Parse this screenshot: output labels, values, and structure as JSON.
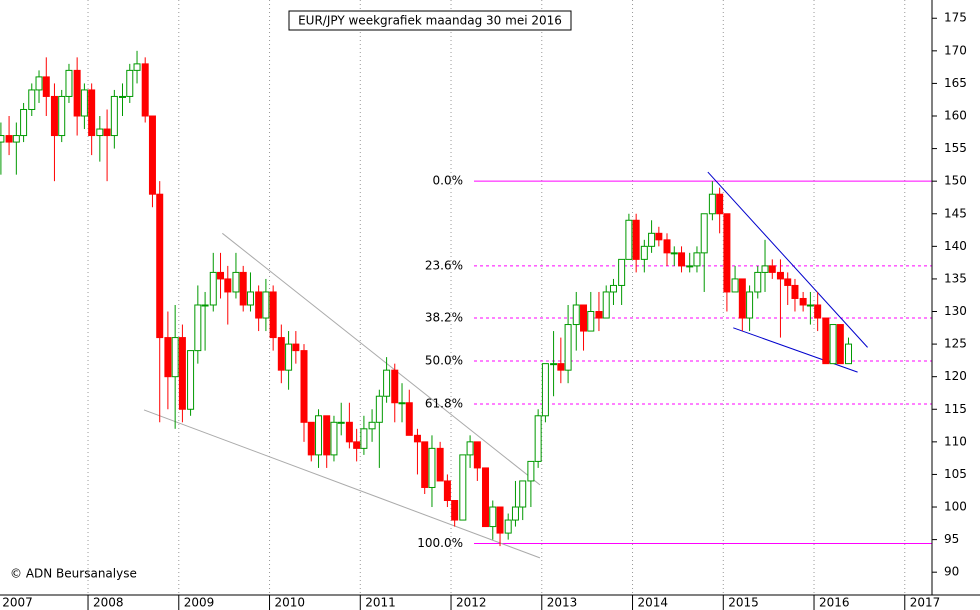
{
  "chart_data": {
    "type": "candlestick",
    "title": "EUR/JPY weekgrafiek maandag 30 mei 2016",
    "credit": "© ADN Beursanalyse",
    "xlim": [
      2007.03,
      2017.3
    ],
    "xticks": [
      2007,
      2008,
      2009,
      2010,
      2011,
      2012,
      2013,
      2014,
      2015,
      2016,
      2017
    ],
    "ylim": [
      86.5,
      177.8
    ],
    "yticks": [
      90,
      95,
      100,
      105,
      110,
      115,
      120,
      125,
      130,
      135,
      140,
      145,
      150,
      155,
      160,
      165,
      170,
      175
    ],
    "up_color": "#009900",
    "down_color": "#ff0000",
    "grid": true,
    "x": [
      2007.04,
      2007.13,
      2007.21,
      2007.29,
      2007.38,
      2007.46,
      2007.54,
      2007.63,
      2007.71,
      2007.79,
      2007.88,
      2007.96,
      2008.04,
      2008.13,
      2008.21,
      2008.29,
      2008.38,
      2008.46,
      2008.54,
      2008.63,
      2008.71,
      2008.79,
      2008.88,
      2008.96,
      2009.04,
      2009.13,
      2009.21,
      2009.29,
      2009.38,
      2009.46,
      2009.54,
      2009.63,
      2009.71,
      2009.79,
      2009.88,
      2009.96,
      2010.04,
      2010.13,
      2010.21,
      2010.29,
      2010.38,
      2010.46,
      2010.54,
      2010.63,
      2010.71,
      2010.79,
      2010.88,
      2010.96,
      2011.04,
      2011.13,
      2011.21,
      2011.29,
      2011.38,
      2011.46,
      2011.54,
      2011.63,
      2011.71,
      2011.79,
      2011.88,
      2011.96,
      2012.04,
      2012.13,
      2012.21,
      2012.29,
      2012.38,
      2012.46,
      2012.54,
      2012.63,
      2012.71,
      2012.79,
      2012.88,
      2012.96,
      2013.04,
      2013.13,
      2013.21,
      2013.29,
      2013.38,
      2013.46,
      2013.54,
      2013.63,
      2013.71,
      2013.79,
      2013.88,
      2013.96,
      2014.04,
      2014.13,
      2014.21,
      2014.29,
      2014.38,
      2014.46,
      2014.54,
      2014.63,
      2014.71,
      2014.79,
      2014.88,
      2014.96,
      2015.04,
      2015.13,
      2015.21,
      2015.29,
      2015.38,
      2015.46,
      2015.54,
      2015.63,
      2015.71,
      2015.79,
      2015.88,
      2015.96,
      2016.04,
      2016.13,
      2016.21,
      2016.29,
      2016.38
    ],
    "open": [
      156,
      157,
      156,
      157,
      161,
      164,
      166,
      163,
      157,
      163,
      167,
      160,
      164,
      157,
      158,
      157,
      163,
      163,
      167,
      168,
      160,
      148,
      126,
      120,
      126,
      115,
      124,
      131,
      131,
      136,
      135,
      133,
      136,
      131,
      133,
      129,
      133,
      126,
      121,
      125,
      124,
      113,
      108,
      114,
      108,
      113,
      113,
      110,
      109,
      112,
      113,
      117,
      121,
      116,
      116,
      111,
      110,
      103,
      109,
      104,
      101,
      98,
      108,
      110,
      106,
      97,
      100,
      96,
      98,
      100,
      104,
      107,
      114,
      122,
      122,
      121,
      128,
      131,
      127,
      130,
      129,
      133,
      134,
      138,
      144,
      138,
      140,
      142,
      141,
      139,
      139,
      137,
      137,
      139,
      145,
      148,
      145,
      133,
      135,
      129,
      133,
      136,
      137,
      136,
      135,
      134,
      132,
      131,
      131,
      129,
      122,
      128,
      122
    ],
    "high": [
      159,
      160,
      159,
      162,
      165,
      167,
      169,
      165,
      164,
      168,
      169,
      165,
      165,
      160,
      161,
      164,
      165,
      168,
      170,
      169,
      160,
      150,
      130,
      131,
      128,
      124,
      134,
      133,
      139,
      139,
      137,
      139,
      137,
      136,
      134,
      135,
      134,
      128,
      127,
      127,
      125,
      113,
      115,
      114,
      114,
      116,
      116,
      112,
      114,
      115,
      118,
      123,
      122,
      119,
      118,
      112,
      110,
      111,
      110,
      105,
      101,
      108,
      111,
      110,
      106,
      101,
      100,
      99,
      104,
      104,
      107,
      115,
      122,
      127,
      126,
      131,
      133,
      131,
      133,
      133,
      134,
      135,
      138,
      145,
      145,
      141,
      144,
      143,
      142,
      140,
      140,
      139,
      140,
      145,
      150,
      149,
      145,
      137,
      135,
      134,
      137,
      141,
      138,
      138,
      136,
      135,
      133,
      133,
      133,
      129,
      128,
      128,
      126
    ],
    "low": [
      151,
      154,
      151,
      156,
      160,
      162,
      160,
      150,
      156,
      162,
      157,
      158,
      154,
      153,
      150,
      155,
      160,
      162,
      165,
      159,
      146,
      113,
      115,
      112,
      113,
      114,
      122,
      124,
      130,
      132,
      128,
      132,
      130,
      130,
      127,
      127,
      124,
      119,
      118,
      122,
      110,
      107,
      106,
      106,
      107,
      111,
      109,
      107,
      108,
      110,
      106,
      116,
      113,
      113,
      111,
      105,
      102,
      100,
      104,
      100,
      97,
      98,
      106,
      104,
      97,
      95,
      94,
      95,
      97,
      98,
      100,
      106,
      113,
      117,
      119,
      119,
      124,
      124,
      127,
      127,
      129,
      131,
      131,
      138,
      136,
      136,
      139,
      140,
      137,
      137,
      136,
      136,
      136,
      133,
      144,
      142,
      130,
      133,
      127,
      127,
      132,
      133,
      135,
      126,
      131,
      130,
      130,
      128,
      127,
      122,
      122,
      122,
      122
    ],
    "close": [
      157,
      156,
      157,
      161,
      164,
      166,
      163,
      157,
      163,
      167,
      160,
      164,
      157,
      158,
      157,
      163,
      163,
      167,
      168,
      160,
      148,
      126,
      120,
      126,
      115,
      124,
      131,
      131,
      136,
      135,
      133,
      136,
      131,
      133,
      129,
      133,
      126,
      121,
      125,
      124,
      113,
      108,
      114,
      108,
      113,
      113,
      110,
      109,
      112,
      113,
      117,
      121,
      116,
      116,
      111,
      110,
      103,
      109,
      104,
      101,
      98,
      108,
      110,
      106,
      97,
      100,
      96,
      98,
      100,
      104,
      107,
      114,
      122,
      122,
      121,
      128,
      131,
      127,
      130,
      129,
      133,
      134,
      138,
      144,
      138,
      140,
      142,
      141,
      139,
      139,
      137,
      137,
      139,
      145,
      148,
      145,
      133,
      135,
      129,
      133,
      136,
      137,
      136,
      135,
      134,
      132,
      131,
      131,
      129,
      122,
      128,
      122,
      125
    ],
    "fib_color": "#ff00ff",
    "fib_levels": [
      {
        "label": "0.0%",
        "value": 150,
        "style": "solid"
      },
      {
        "label": "23.6%",
        "value": 137,
        "style": "dashed"
      },
      {
        "label": "38.2%",
        "value": 129,
        "style": "dashed"
      },
      {
        "label": "50.0%",
        "value": 122.4,
        "style": "dashed"
      },
      {
        "label": "61.8%",
        "value": 115.8,
        "style": "dashed"
      },
      {
        "label": "100.0%",
        "value": 94.4,
        "style": "solid"
      }
    ],
    "trendlines": [
      {
        "color": "#aaaaaa",
        "x": [
          2008.617,
          2012.98
        ],
        "y": [
          114.9,
          92.2
        ]
      },
      {
        "color": "#aaaaaa",
        "x": [
          2009.48,
          2012.98
        ],
        "y": [
          142.0,
          103.4
        ]
      },
      {
        "color": "#0000cc",
        "x": [
          2014.83,
          2016.59
        ],
        "y": [
          151.4,
          124.5
        ]
      },
      {
        "color": "#0000cc",
        "x": [
          2015.11,
          2016.48
        ],
        "y": [
          127.5,
          120.7
        ]
      }
    ]
  }
}
